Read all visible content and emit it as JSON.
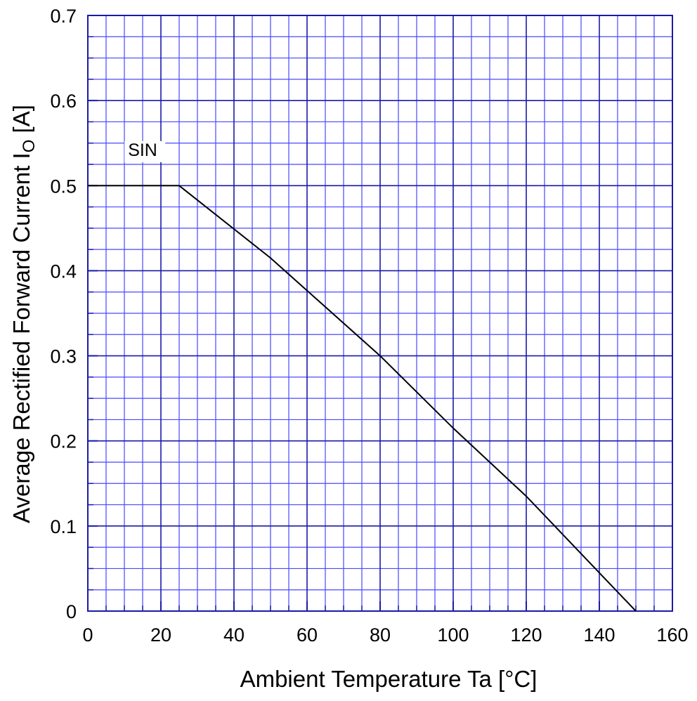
{
  "chart_data": {
    "type": "line",
    "xlabel": "Ambient Temperature  Ta  [°C]",
    "ylabel": {
      "prefix": "Average Rectified Forward Current  I",
      "subscript": "O",
      "suffix": " [A]"
    },
    "xlim": [
      0,
      160
    ],
    "ylim": [
      0,
      0.7
    ],
    "x_ticks": [
      "0",
      "20",
      "40",
      "60",
      "80",
      "100",
      "120",
      "140",
      "160"
    ],
    "y_ticks": [
      "0",
      "0.1",
      "0.2",
      "0.3",
      "0.4",
      "0.5",
      "0.6",
      "0.7"
    ],
    "x_minor_step": 5,
    "y_minor_step": 0.025,
    "grid": true,
    "series": [
      {
        "name": "SIN",
        "x": [
          0,
          25,
          50,
          80,
          100,
          120,
          150
        ],
        "y": [
          0.5,
          0.5,
          0.415,
          0.3,
          0.215,
          0.135,
          0
        ]
      }
    ],
    "annotations": [
      {
        "text": "SIN",
        "x": 11,
        "y": 0.535
      }
    ],
    "colors": {
      "grid_major": "#1a1aa8",
      "grid_minor": "#4848ff",
      "frame": "#1a1aa8",
      "line": "#000000"
    }
  }
}
